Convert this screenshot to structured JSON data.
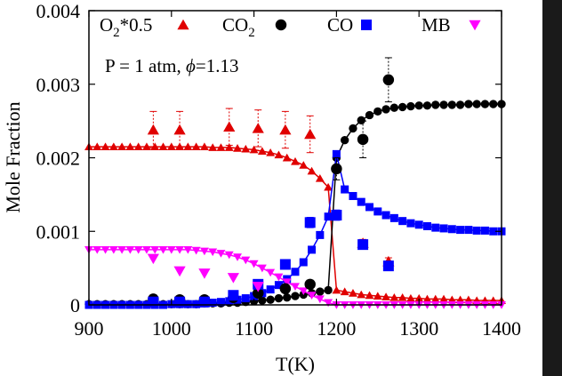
{
  "chart_data": {
    "type": "scatter",
    "xlabel": "T(K)",
    "ylabel": "Mole Fraction",
    "xlim": [
      900,
      1400
    ],
    "ylim": [
      0,
      0.004
    ],
    "x_ticks": [
      {
        "value": 900,
        "label": "900"
      },
      {
        "value": 1000,
        "label": "1000"
      },
      {
        "value": 1100,
        "label": "1100"
      },
      {
        "value": 1200,
        "label": "1200"
      },
      {
        "value": 1300,
        "label": "1300"
      },
      {
        "value": 1400,
        "label": "1400"
      }
    ],
    "y_ticks": [
      {
        "value": 0,
        "label": "0"
      },
      {
        "value": 0.001,
        "label": "0.001"
      },
      {
        "value": 0.002,
        "label": "0.002"
      },
      {
        "value": 0.003,
        "label": "0.003"
      },
      {
        "value": 0.004,
        "label": "0.004"
      }
    ],
    "annotation": {
      "label": "P = 1 atm, ",
      "phi_symbol": "ϕ",
      "phi_value": "=1.13"
    },
    "legend_position": "top",
    "legend": [
      {
        "base": "O",
        "sub": "2",
        "tail": "*0.5",
        "marker": "triangle-up",
        "color": "#e00000"
      },
      {
        "base": "CO",
        "sub": "2",
        "tail": "",
        "marker": "circle",
        "color": "#000000"
      },
      {
        "base": "CO",
        "sub": "",
        "tail": "",
        "marker": "square",
        "color": "#0000ff"
      },
      {
        "base": "MB",
        "sub": "",
        "tail": "",
        "marker": "triangle-down",
        "color": "#ff00ff"
      }
    ],
    "model_series": [
      {
        "species": "O2*0.5",
        "marker": "triangle-up",
        "color": "#e00000",
        "x": [
          900,
          910,
          920,
          930,
          940,
          950,
          960,
          970,
          980,
          990,
          1000,
          1010,
          1020,
          1030,
          1040,
          1050,
          1060,
          1070,
          1080,
          1090,
          1100,
          1110,
          1120,
          1130,
          1140,
          1150,
          1160,
          1170,
          1180,
          1190,
          1200,
          1210,
          1220,
          1230,
          1240,
          1250,
          1260,
          1270,
          1280,
          1290,
          1300,
          1310,
          1320,
          1330,
          1340,
          1350,
          1360,
          1370,
          1380,
          1390,
          1400
        ],
        "y": [
          0.00215,
          0.00215,
          0.00215,
          0.00215,
          0.00215,
          0.00215,
          0.00215,
          0.00215,
          0.00215,
          0.00215,
          0.00215,
          0.00215,
          0.00215,
          0.00215,
          0.00215,
          0.00214,
          0.00214,
          0.00214,
          0.00213,
          0.00212,
          0.00211,
          0.00209,
          0.00207,
          0.00204,
          0.002,
          0.00195,
          0.0019,
          0.00182,
          0.00172,
          0.0016,
          0.0002,
          0.00018,
          0.00016,
          0.00014,
          0.00013,
          0.00012,
          0.00011,
          0.0001,
          0.0001,
          9e-05,
          9e-05,
          8e-05,
          8e-05,
          8e-05,
          7e-05,
          7e-05,
          7e-05,
          6e-05,
          6e-05,
          6e-05,
          6e-05
        ]
      },
      {
        "species": "CO2",
        "marker": "circle",
        "color": "#000000",
        "x": [
          900,
          910,
          920,
          930,
          940,
          950,
          960,
          970,
          980,
          990,
          1000,
          1010,
          1020,
          1030,
          1040,
          1050,
          1060,
          1070,
          1080,
          1090,
          1100,
          1110,
          1120,
          1130,
          1140,
          1150,
          1160,
          1170,
          1180,
          1190,
          1200,
          1210,
          1220,
          1230,
          1240,
          1250,
          1260,
          1270,
          1280,
          1290,
          1300,
          1310,
          1320,
          1330,
          1340,
          1350,
          1360,
          1370,
          1380,
          1390,
          1400
        ],
        "y": [
          1e-05,
          1e-05,
          1e-05,
          1e-05,
          1e-05,
          1e-05,
          1e-05,
          1e-05,
          1e-05,
          1e-05,
          1e-05,
          1e-05,
          1e-05,
          1e-05,
          2e-05,
          2e-05,
          2e-05,
          3e-05,
          3e-05,
          4e-05,
          5e-05,
          6e-05,
          7e-05,
          9e-05,
          0.0001,
          0.00012,
          0.00014,
          0.00016,
          0.00018,
          0.0002,
          0.002,
          0.00224,
          0.0024,
          0.00251,
          0.00258,
          0.00263,
          0.00266,
          0.00268,
          0.00269,
          0.0027,
          0.00271,
          0.00271,
          0.00272,
          0.00272,
          0.00272,
          0.00272,
          0.00273,
          0.00273,
          0.00273,
          0.00273,
          0.00273
        ]
      },
      {
        "species": "CO",
        "marker": "square",
        "color": "#0000ff",
        "x": [
          900,
          910,
          920,
          930,
          940,
          950,
          960,
          970,
          980,
          990,
          1000,
          1010,
          1020,
          1030,
          1040,
          1050,
          1060,
          1070,
          1080,
          1090,
          1100,
          1110,
          1120,
          1130,
          1140,
          1150,
          1160,
          1170,
          1180,
          1190,
          1200,
          1210,
          1220,
          1230,
          1240,
          1250,
          1260,
          1270,
          1280,
          1290,
          1300,
          1310,
          1320,
          1330,
          1340,
          1350,
          1360,
          1370,
          1380,
          1390,
          1400
        ],
        "y": [
          0,
          0,
          0,
          0,
          0,
          0,
          0,
          0,
          0,
          0,
          1e-05,
          1e-05,
          1e-05,
          1e-05,
          2e-05,
          3e-05,
          4e-05,
          5e-05,
          7e-05,
          9e-05,
          0.00012,
          0.00016,
          0.00021,
          0.00027,
          0.00035,
          0.00045,
          0.00058,
          0.00075,
          0.00095,
          0.0012,
          0.00205,
          0.00157,
          0.00148,
          0.0014,
          0.00133,
          0.00127,
          0.00122,
          0.00118,
          0.00114,
          0.00111,
          0.00109,
          0.00107,
          0.00105,
          0.00104,
          0.00103,
          0.00102,
          0.00102,
          0.00101,
          0.00101,
          0.001,
          0.001
        ]
      },
      {
        "species": "MB",
        "marker": "triangle-down",
        "color": "#ff00ff",
        "x": [
          900,
          910,
          920,
          930,
          940,
          950,
          960,
          970,
          980,
          990,
          1000,
          1010,
          1020,
          1030,
          1040,
          1050,
          1060,
          1070,
          1080,
          1090,
          1100,
          1110,
          1120,
          1130,
          1140,
          1150,
          1160,
          1170,
          1180,
          1190,
          1200,
          1210,
          1220,
          1230,
          1240,
          1250,
          1260,
          1270,
          1280,
          1290,
          1300,
          1310,
          1320,
          1330,
          1340,
          1350,
          1360,
          1370,
          1380,
          1390,
          1400
        ],
        "y": [
          0.00075,
          0.00075,
          0.00075,
          0.00075,
          0.00075,
          0.00075,
          0.00075,
          0.00075,
          0.00075,
          0.00075,
          0.00075,
          0.00075,
          0.00075,
          0.00074,
          0.00073,
          0.00072,
          0.0007,
          0.00068,
          0.00065,
          0.00061,
          0.00056,
          0.0005,
          0.00044,
          0.00038,
          0.00031,
          0.00025,
          0.00019,
          0.00013,
          8e-05,
          3e-05,
          0,
          0,
          0,
          0,
          0,
          0,
          0,
          0,
          0,
          0,
          0,
          0,
          0,
          0,
          0,
          0,
          0,
          0,
          0,
          0,
          0
        ]
      }
    ],
    "experimental_series": [
      {
        "species": "O2*0.5",
        "marker": "triangle-up",
        "color": "#e00000",
        "x": [
          978,
          1010,
          1070,
          1105,
          1138,
          1168,
          1232,
          1263
        ],
        "y": [
          0.00238,
          0.00238,
          0.00242,
          0.0024,
          0.00238,
          0.00232,
          0.00084,
          0.00059
        ],
        "err": [
          0.00025,
          0.00025,
          0.00025,
          0.00025,
          0.00025,
          0.00025,
          5e-05,
          5e-05
        ]
      },
      {
        "species": "CO2",
        "marker": "circle",
        "color": "#000000",
        "x": [
          978,
          1010,
          1040,
          1075,
          1105,
          1138,
          1168,
          1200,
          1232,
          1263
        ],
        "y": [
          8e-05,
          7e-05,
          7e-05,
          0.0001,
          0.00016,
          0.00022,
          0.00028,
          0.00185,
          0.00225,
          0.00306
        ],
        "err": [
          0,
          0,
          0,
          0,
          0,
          0,
          0,
          0.00015,
          0.00025,
          0.0003
        ]
      },
      {
        "species": "CO",
        "marker": "square",
        "color": "#0000ff",
        "x": [
          978,
          1010,
          1040,
          1075,
          1105,
          1138,
          1168,
          1200,
          1232,
          1263
        ],
        "y": [
          4e-05,
          4e-05,
          4e-05,
          0.00013,
          0.00028,
          0.00055,
          0.00112,
          0.00122,
          0.00082,
          0.00053
        ],
        "err": [
          0,
          0,
          0,
          0,
          0,
          0,
          7e-05,
          7e-05,
          0,
          0
        ]
      },
      {
        "species": "MB",
        "marker": "triangle-down",
        "color": "#ff00ff",
        "x": [
          978,
          1010,
          1040,
          1075,
          1105
        ],
        "y": [
          0.00063,
          0.00046,
          0.00043,
          0.00037,
          0.00025
        ],
        "err": [
          0,
          0,
          0,
          0,
          0
        ]
      }
    ]
  }
}
